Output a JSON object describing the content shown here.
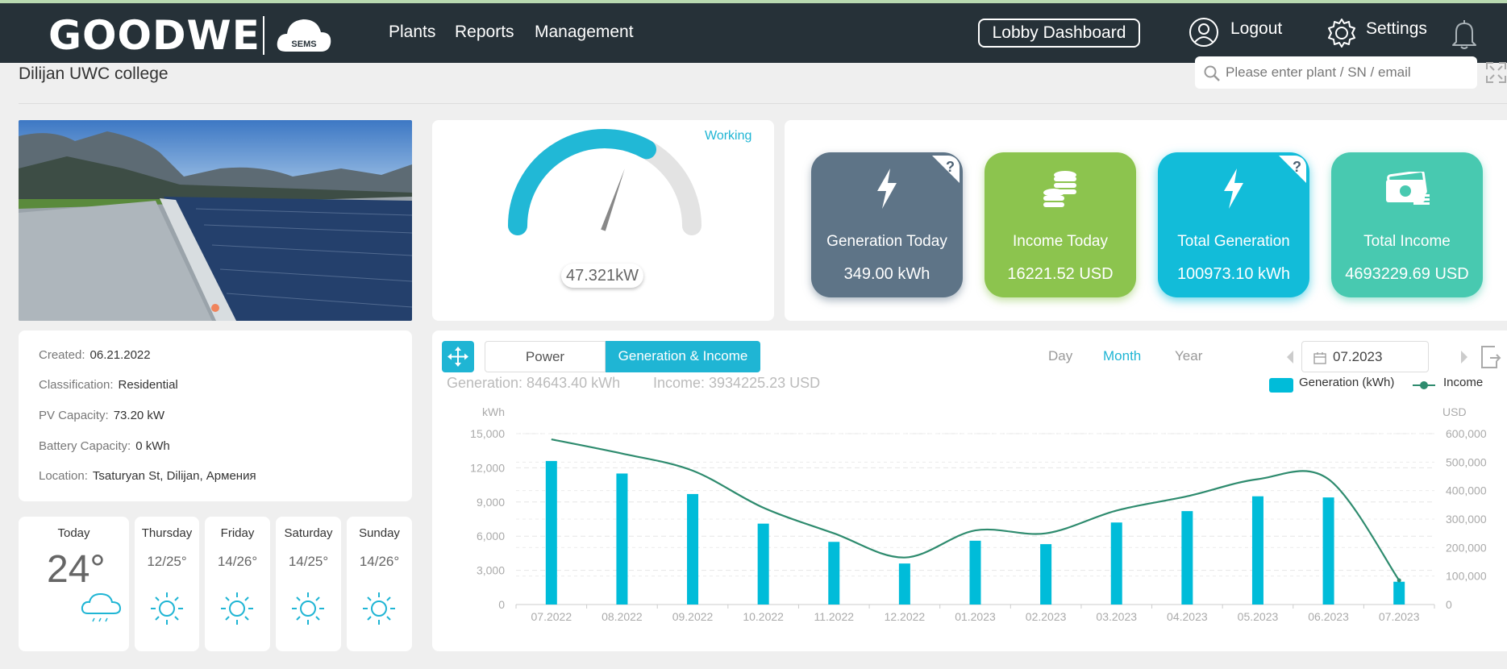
{
  "header": {
    "logo_text": "GOODWE",
    "cloud_label": "SEMS",
    "nav": [
      "Plants",
      "Reports",
      "Management"
    ],
    "lobby_label": "Lobby Dashboard",
    "logout_label": "Logout",
    "settings_label": "Settings"
  },
  "page": {
    "plant_name": "Dilijan UWC college",
    "search_placeholder": "Please enter plant / SN / email"
  },
  "info": {
    "created_label": "Created:",
    "created_value": "06.21.2022",
    "classification_label": "Classification:",
    "classification_value": "Residential",
    "pv_label": "PV Capacity:",
    "pv_value": "73.20 kW",
    "battery_label": "Battery Capacity:",
    "battery_value": "0 kWh",
    "location_label": "Location:",
    "location_value": "Tsaturyan St, Dilijan, Армения"
  },
  "weather": [
    {
      "day": "Today",
      "temp": "24°",
      "icon": "rain-cloud-icon"
    },
    {
      "day": "Thursday",
      "temp": "12/25°",
      "icon": "sun-icon"
    },
    {
      "day": "Friday",
      "temp": "14/26°",
      "icon": "sun-icon"
    },
    {
      "day": "Saturday",
      "temp": "14/25°",
      "icon": "sun-icon"
    },
    {
      "day": "Sunday",
      "temp": "14/26°",
      "icon": "sun-icon"
    }
  ],
  "gauge": {
    "status": "Working",
    "value": "47.321kW",
    "fraction": 0.66
  },
  "stats": [
    {
      "label": "Generation Today",
      "value": "349.00 kWh",
      "color": "#5e7487",
      "icon": "lightning-icon",
      "help": "?"
    },
    {
      "label": "Income Today",
      "value": "16221.52 USD",
      "color": "#8cc44e",
      "icon": "coins-icon",
      "help": ""
    },
    {
      "label": "Total Generation",
      "value": "100973.10 kWh",
      "color": "#12bcd9",
      "icon": "lightning-icon",
      "help": "?"
    },
    {
      "label": "Total Income",
      "value": "4693229.69 USD",
      "color": "#48c9b0",
      "icon": "money-icon",
      "help": ""
    }
  ],
  "chart_controls": {
    "tabs": [
      "Power",
      "Generation & Income"
    ],
    "active_tab": "Generation & Income",
    "periods": [
      "Day",
      "Month",
      "Year"
    ],
    "active_period": "Month",
    "date": "07.2023",
    "generation_summary": "Generation:  84643.40 kWh",
    "income_summary": "Income:  3934225.23 USD",
    "legend_generation": "Generation (kWh)",
    "legend_income": "Income"
  },
  "chart_data": {
    "type": "bar",
    "categories": [
      "07.2022",
      "08.2022",
      "09.2022",
      "10.2022",
      "11.2022",
      "12.2022",
      "01.2023",
      "02.2023",
      "03.2023",
      "04.2023",
      "05.2023",
      "06.2023",
      "07.2023"
    ],
    "series": [
      {
        "name": "Generation (kWh)",
        "type": "bar",
        "axis": "left",
        "color": "#00bcd9",
        "values": [
          12600,
          11500,
          9700,
          7100,
          5500,
          3600,
          5600,
          5300,
          7200,
          8200,
          9500,
          9400,
          2000
        ]
      },
      {
        "name": "Income",
        "type": "line",
        "axis": "right",
        "color": "#2e8b6e",
        "values": [
          580000,
          530000,
          470000,
          340000,
          250000,
          165000,
          260000,
          250000,
          330000,
          380000,
          440000,
          440000,
          85000
        ]
      }
    ],
    "ylabel_left": "kWh",
    "ylabel_right": "USD",
    "ylim_left": [
      0,
      15000
    ],
    "yticks_left": [
      "0",
      "3,000",
      "6,000",
      "9,000",
      "12,000",
      "15,000"
    ],
    "ylim_right": [
      0,
      600000
    ],
    "yticks_right": [
      "0",
      "100,000",
      "200,000",
      "300,000",
      "400,000",
      "500,000",
      "600,000"
    ],
    "grid": true,
    "legend": "top-right"
  }
}
